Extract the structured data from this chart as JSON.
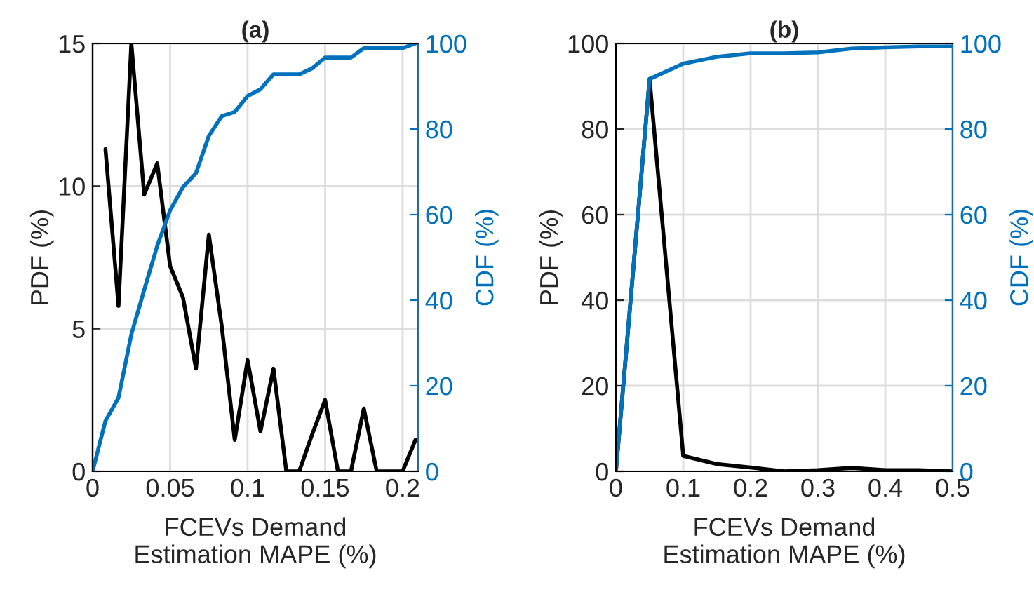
{
  "chart_data": [
    {
      "type": "line",
      "title": "(a)",
      "xlabel": "FCEVs Demand\nEstimation MAPE (%)",
      "ylabel": "PDF (%)",
      "y2label": "CDF (%)",
      "xlim": [
        0,
        0.21
      ],
      "xticks": [
        0,
        0.05,
        0.1,
        0.15,
        0.2
      ],
      "ylim": [
        0,
        15
      ],
      "yticks": [
        0,
        5,
        10,
        15
      ],
      "y2lim": [
        0,
        100
      ],
      "y2ticks": [
        0,
        20,
        40,
        60,
        80,
        100
      ],
      "grid": true,
      "legend": false,
      "series": [
        {
          "color": "#000000",
          "x": [
            0.0083,
            0.0167,
            0.025,
            0.0333,
            0.0417,
            0.05,
            0.0583,
            0.0667,
            0.075,
            0.0833,
            0.0917,
            0.1,
            0.1083,
            0.1167,
            0.125,
            0.1333,
            0.1417,
            0.15,
            0.1583,
            0.1667,
            0.175,
            0.1833,
            0.1917,
            0.2,
            0.2083
          ],
          "values": [
            11.3,
            5.8,
            15,
            9.7,
            10.8,
            7.2,
            6.1,
            3.6,
            8.3,
            5.1,
            1.1,
            3.9,
            1.4,
            3.6,
            0,
            0,
            1.3,
            2.5,
            0,
            0,
            2.2,
            0,
            0,
            0,
            1.1
          ]
        },
        {
          "color": "#0072bd",
          "axis": "y2",
          "x": [
            0,
            0.0083,
            0.0167,
            0.025,
            0.0333,
            0.0417,
            0.05,
            0.0583,
            0.0667,
            0.075,
            0.0833,
            0.0917,
            0.1,
            0.1083,
            0.1167,
            0.125,
            0.1333,
            0.1417,
            0.15,
            0.1583,
            0.1667,
            0.175,
            0.1833,
            0.1917,
            0.2,
            0.2083
          ],
          "values": [
            0,
            11.8,
            17.2,
            32,
            42.4,
            52.7,
            61,
            66.4,
            69.7,
            78.4,
            83,
            84,
            87.7,
            89.3,
            92.8,
            92.8,
            92.8,
            94.2,
            96.7,
            96.7,
            96.7,
            98.9,
            98.9,
            98.9,
            98.9,
            100
          ]
        }
      ]
    },
    {
      "type": "line",
      "title": "(b)",
      "xlabel": "FCEVs Demand\nEstimation MAPE (%)",
      "ylabel": "PDF (%)",
      "y2label": "CDF (%)",
      "xlim": [
        0,
        0.5
      ],
      "xticks": [
        0,
        0.1,
        0.2,
        0.3,
        0.4,
        0.5
      ],
      "ylim": [
        0,
        100
      ],
      "yticks": [
        0,
        20,
        40,
        60,
        80,
        100
      ],
      "y2lim": [
        0,
        100
      ],
      "y2ticks": [
        0,
        20,
        40,
        60,
        80,
        100
      ],
      "grid": true,
      "legend": false,
      "series": [
        {
          "color": "#000000",
          "x": [
            0,
            0.05,
            0.1,
            0.15,
            0.2,
            0.25,
            0.3,
            0.35,
            0.4,
            0.45,
            0.5
          ],
          "values": [
            0,
            91.7,
            3.6,
            1.7,
            0.9,
            0,
            0.3,
            0.8,
            0.3,
            0.3,
            0
          ]
        },
        {
          "color": "#0072bd",
          "axis": "y2",
          "x": [
            0,
            0.05,
            0.1,
            0.15,
            0.2,
            0.25,
            0.3,
            0.35,
            0.4,
            0.45,
            0.5
          ],
          "values": [
            0,
            91.7,
            95.3,
            96.9,
            97.7,
            97.7,
            97.9,
            98.8,
            99.1,
            99.3,
            99.3
          ]
        }
      ]
    }
  ]
}
